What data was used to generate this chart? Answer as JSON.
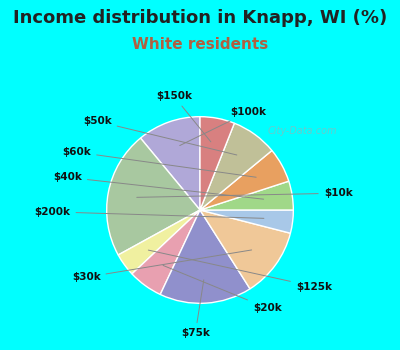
{
  "title": "Income distribution in Knapp, WI (%)",
  "subtitle": "White residents",
  "background_color": "#00FFFF",
  "chart_bg_color": "#e0f0e8",
  "labels": [
    "$100k",
    "$10k",
    "$125k",
    "$20k",
    "$75k",
    "$30k",
    "$200k",
    "$40k",
    "$60k",
    "$50k",
    "$150k"
  ],
  "values": [
    11,
    22,
    4,
    6,
    16,
    12,
    4,
    5,
    6,
    8,
    6
  ],
  "colors": [
    "#b0a8d8",
    "#a8c8a0",
    "#f0f0a0",
    "#e8a0b0",
    "#9090cc",
    "#f0c898",
    "#a8c8e8",
    "#a0d888",
    "#e8a060",
    "#c0c098",
    "#d88080"
  ],
  "title_fontsize": 13,
  "title_color": "#222222",
  "subtitle_fontsize": 11,
  "subtitle_color": "#b06040",
  "label_fontsize": 7.5
}
